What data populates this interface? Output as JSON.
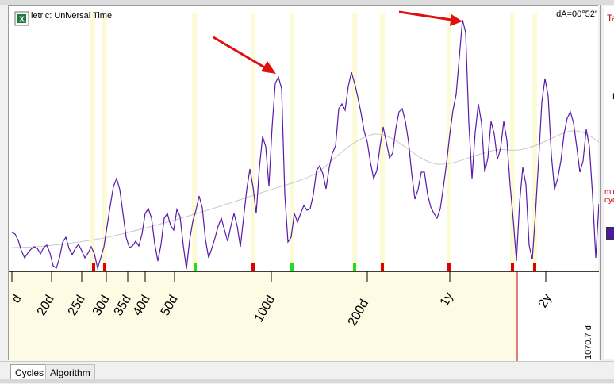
{
  "header": {
    "title": "letric: Universal Time",
    "readout": "dA=00°52'"
  },
  "right_panel": {
    "tab_fragment": "Ta",
    "label_fragment": "F",
    "warning_line1": "mir",
    "warning_line2": "cyc"
  },
  "axis": {
    "tick_labels": [
      "d",
      "20d",
      "25d",
      "30d",
      "35d",
      "40d",
      "50d",
      "100d",
      "200d",
      "1y",
      "2y"
    ],
    "cursor_label": "1070.7 d"
  },
  "tabs": [
    "Cycles",
    "Algorithm"
  ],
  "colors": {
    "curve": "#5a1aa8",
    "background_curve": "#c8c8c8",
    "axis_band": "#fdfbe4",
    "highlight_band": "#fafad2",
    "red_marker": "#e00000",
    "green_marker": "#22dd22",
    "arrow": "#e01010",
    "cursor_line": "#c00000"
  },
  "icons": {
    "excel_button": "excel-icon"
  }
}
